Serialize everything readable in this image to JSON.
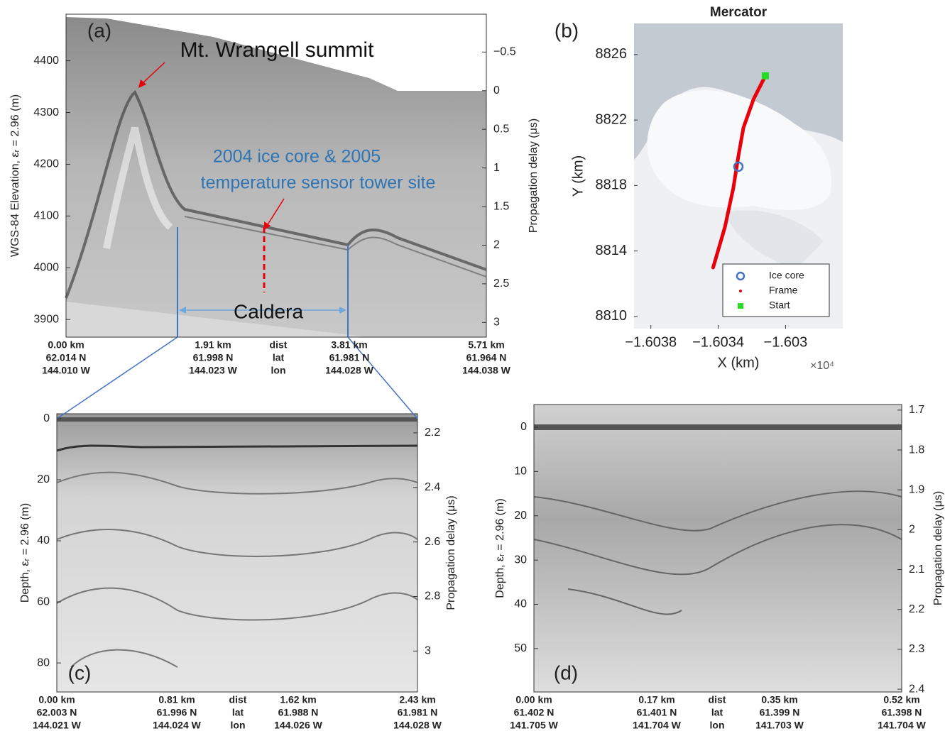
{
  "chart_data": [
    {
      "type": "radargram",
      "panel_label": "(a)",
      "ylabel": "WGS-84 Elevation, εᵣ = 2.96 (m)",
      "y2label": "Propagation delay (μs)",
      "ylim": [
        3866,
        4490
      ],
      "yticks": [
        3900,
        4000,
        4100,
        4200,
        4300,
        4400
      ],
      "y2lim": [
        3.19,
        -0.99
      ],
      "y2ticks": [
        {
          "value": -0.5,
          "label": "−0.5"
        },
        0,
        0.5,
        1,
        1.5,
        2,
        2.5,
        3
      ],
      "x_labels": [
        [
          "0.00 km",
          "62.014 N",
          "144.010 W"
        ],
        [
          "1.91 km",
          "61.998 N",
          "144.023 W"
        ],
        [
          "dist",
          "lat",
          "lon"
        ],
        [
          "3.81 km",
          "61.981 N",
          "144.028 W"
        ],
        [
          "5.71 km",
          "61.964 N",
          "144.038 W"
        ]
      ],
      "annotations": [
        "Mt. Wrangell summit",
        "2004 ice core & 2005",
        "temperature sensor tower site",
        "Caldera"
      ]
    },
    {
      "type": "map",
      "panel_label": "(b)",
      "title": "Mercator",
      "xlabel": "X (km)",
      "ylabel": "Y (km)",
      "x_multiplier": "×10⁴",
      "xlim": [
        -1.6039,
        -1.60266
      ],
      "xticks": [
        {
          "value": -1.6038,
          "label": "−1.6038"
        },
        {
          "value": -1.6034,
          "label": "−1.6034"
        },
        {
          "value": -1.603,
          "label": "−1.603"
        }
      ],
      "ylim": [
        8809.26,
        8827.9
      ],
      "yticks": [
        8810,
        8814,
        8818,
        8822,
        8826
      ],
      "series": [
        {
          "name": "Ice core",
          "color": "#4472c4",
          "x": [
            -1.60328
          ],
          "values": [
            8819.15
          ]
        },
        {
          "name": "Frame",
          "color": "#e8000b",
          "x": [
            -1.60343,
            -1.60336,
            -1.60331,
            -1.60328,
            -1.60325,
            -1.60319,
            -1.60312
          ],
          "values": [
            8812.99,
            8815.46,
            8817.85,
            8819.8,
            8821.53,
            8823.27,
            8824.7
          ]
        },
        {
          "name": "Start",
          "color": "#22dd22",
          "x": [
            -1.60312
          ],
          "values": [
            8824.7
          ]
        }
      ]
    },
    {
      "type": "radargram",
      "panel_label": "(c)",
      "ylabel": "Depth, εᵣ = 2.96 (m)",
      "y2label": "Propagation delay (μs)",
      "ylim": [
        89.5,
        -1.6
      ],
      "yticks": [
        0,
        20,
        40,
        60,
        80
      ],
      "y2lim": [
        3.15,
        2.13
      ],
      "y2ticks": [
        2.2,
        2.4,
        2.6,
        2.8,
        3
      ],
      "x_labels": [
        [
          "0.00 km",
          "62.003 N",
          "144.021 W"
        ],
        [
          "0.81 km",
          "61.996 N",
          "144.024 W"
        ],
        [
          "dist",
          "lat",
          "lon"
        ],
        [
          "1.62 km",
          "61.988 N",
          "144.026 W"
        ],
        [
          "2.43 km",
          "61.981 N",
          "144.028 W"
        ]
      ]
    },
    {
      "type": "radargram",
      "panel_label": "(d)",
      "ylabel": "Depth, εᵣ = 2.96 (m)",
      "y2label": "Propagation delay (μs)",
      "ylim": [
        59.8,
        -5.13
      ],
      "yticks": [
        0,
        10,
        20,
        30,
        40,
        50
      ],
      "y2lim": [
        2.407,
        1.686
      ],
      "y2ticks": [
        1.7,
        1.8,
        1.9,
        2,
        2.1,
        2.2,
        2.3,
        2.4
      ],
      "x_labels": [
        [
          "0.00 km",
          "61.402 N",
          "141.705 W"
        ],
        [
          "0.17 km",
          "61.401 N",
          "141.704 W"
        ],
        [
          "dist",
          "lat",
          "lon"
        ],
        [
          "0.35 km",
          "61.399 N",
          "141.703 W"
        ],
        [
          "0.52 km",
          "61.398 N",
          "141.704 W"
        ]
      ]
    }
  ]
}
